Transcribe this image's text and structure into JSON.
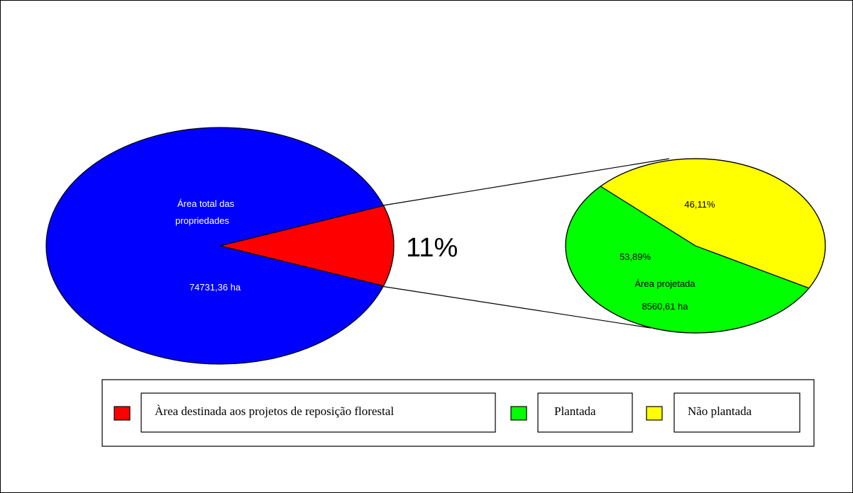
{
  "chart_data": [
    {
      "type": "pie",
      "slices": [
        {
          "label": "Área total das propriedades",
          "value": 89
        },
        {
          "label": "Àrea destinada aos projetos de reposição florestal",
          "value": 11
        }
      ],
      "slice_labels": {
        "main_line1": "Área total    das",
        "main_line2": "propriedades",
        "main_value": "74731,36 ha",
        "exploded_pct": "11%"
      },
      "colors": {
        "main": "#0000ff",
        "exploded": "#ff0000"
      }
    },
    {
      "type": "pie",
      "slices": [
        {
          "label": "Plantada",
          "value": 53.89
        },
        {
          "label": "Não plantada",
          "value": 46.11
        }
      ],
      "slice_labels": {
        "plantada_pct": "53,89%",
        "nao_plantada_pct": "46,11%",
        "area_line1": "Área  projetada",
        "area_line2": "8560,61 ha"
      },
      "colors": {
        "plantada": "#00ff00",
        "nao_plantada": "#ffff00"
      }
    }
  ],
  "legend": {
    "items": [
      {
        "label": "Àrea destinada aos projetos de reposição florestal",
        "color": "#ff0000"
      },
      {
        "label": "Plantada",
        "color": "#00ff00"
      },
      {
        "label": "Não plantada",
        "color": "#ffff00"
      }
    ]
  }
}
